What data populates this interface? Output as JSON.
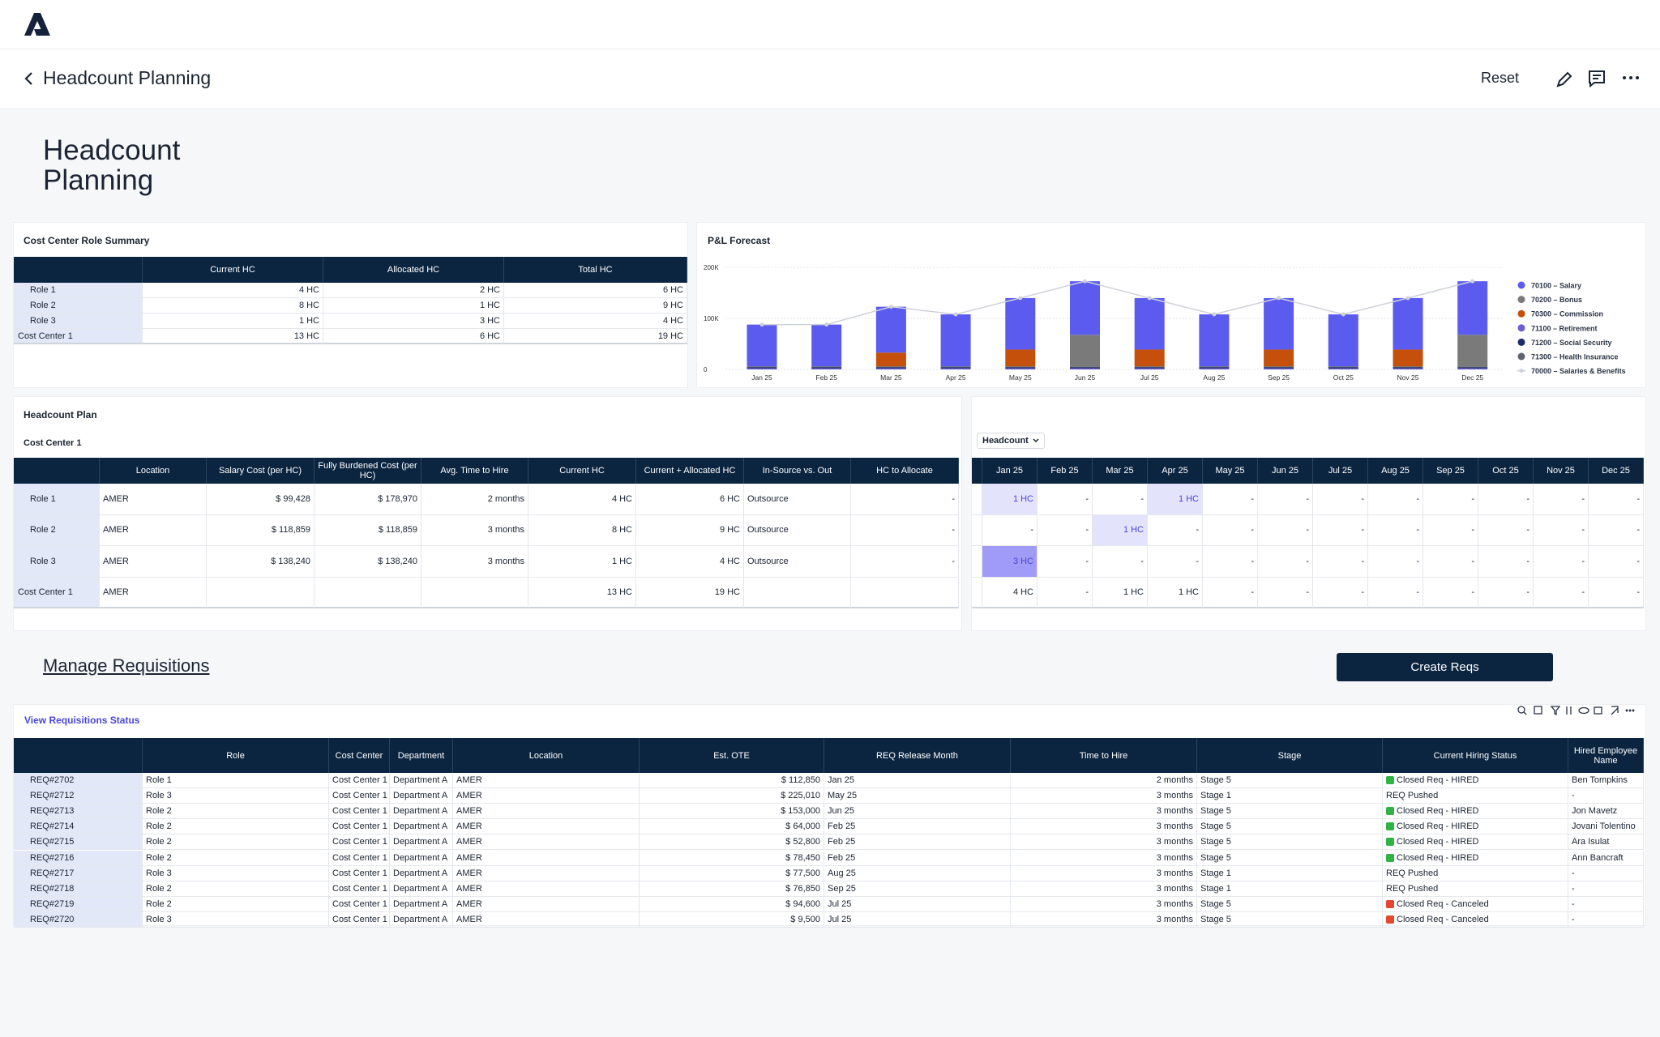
{
  "app": {
    "nav_title": "Headcount Planning",
    "reset": "Reset"
  },
  "page_title": "Headcount Planning",
  "role_summary": {
    "title": "Cost Center Role Summary",
    "columns": [
      "Current HC",
      "Allocated HC",
      "Total HC"
    ],
    "rows": [
      [
        "Role 1",
        "4 HC",
        "2 HC",
        "6 HC"
      ],
      [
        "Role 2",
        "8 HC",
        "1 HC",
        "9 HC"
      ],
      [
        "Role 3",
        "1 HC",
        "3 HC",
        "4 HC"
      ],
      [
        "Cost Center 1",
        "13 HC",
        "6 HC",
        "19 HC"
      ]
    ]
  },
  "chart_data": {
    "type": "bar",
    "title": "P&L Forecast",
    "stacked": true,
    "categories": [
      "Jan 25",
      "Feb 25",
      "Mar 25",
      "Apr 25",
      "May 25",
      "Jun 25",
      "Jul 25",
      "Aug 25",
      "Sep 25",
      "Oct 25",
      "Nov 25",
      "Dec 25"
    ],
    "series": [
      {
        "name": "70100 – Salary",
        "color": "#5b5bf0",
        "values": [
          82000,
          82000,
          90000,
          102000,
          101000,
          105000,
          101000,
          102000,
          101000,
          102000,
          101000,
          105000
        ]
      },
      {
        "name": "70200 – Bonus",
        "color": "#7a7a7a",
        "values": [
          0,
          0,
          0,
          0,
          0,
          62000,
          0,
          0,
          0,
          0,
          0,
          62000
        ]
      },
      {
        "name": "70300 – Commission",
        "color": "#c4500c",
        "values": [
          0,
          0,
          27000,
          0,
          33000,
          0,
          33000,
          0,
          33000,
          0,
          33000,
          0
        ]
      },
      {
        "name": "71100 – Retirement",
        "color": "#6b5fd6",
        "values": [
          2000,
          2000,
          2000,
          2000,
          2000,
          2000,
          2000,
          2000,
          2000,
          2000,
          2000,
          2000
        ]
      },
      {
        "name": "71200 – Social Security",
        "color": "#1d2b6e",
        "values": [
          2000,
          2000,
          2000,
          2000,
          2000,
          2000,
          2000,
          2000,
          2000,
          2000,
          2000,
          2000
        ]
      },
      {
        "name": "71300 – Health Insurance",
        "color": "#5f6470",
        "values": [
          2000,
          2000,
          2000,
          2000,
          2000,
          2000,
          2000,
          2000,
          2000,
          2000,
          2000,
          2000
        ]
      },
      {
        "name": "70000 – Salaries & Benefits",
        "type": "line",
        "color": "#cfd2da",
        "values": [
          88000,
          88000,
          123000,
          108000,
          140000,
          173000,
          140000,
          108000,
          140000,
          108000,
          140000,
          173000
        ]
      }
    ],
    "ylim": [
      0,
      205000
    ],
    "yticks": [
      0,
      {
        "value": 100000,
        "label": "100K"
      },
      {
        "value": 200000,
        "label": "200K"
      }
    ],
    "grid": true,
    "legend": "right"
  },
  "headcount_plan": {
    "title": "Headcount Plan",
    "subtitle": "Cost Center 1",
    "columns": [
      "Location",
      "Salary Cost (per HC)",
      "Fully Burdened Cost (per HC)",
      "Avg. Time to Hire",
      "Current HC",
      "Current + Allocated HC",
      "In-Source vs. Out",
      "HC to Allocate"
    ],
    "rows": [
      [
        "Role 1",
        "AMER",
        "$ 99,428",
        "$ 178,970",
        "2 months",
        "4 HC",
        "6 HC",
        "Outsource",
        "-"
      ],
      [
        "Role 2",
        "AMER",
        "$ 118,859",
        "$ 118,859",
        "3 months",
        "8 HC",
        "9 HC",
        "Outsource",
        "-"
      ],
      [
        "Role 3",
        "AMER",
        "$ 138,240",
        "$ 138,240",
        "3 months",
        "1 HC",
        "4 HC",
        "Outsource",
        "-"
      ],
      [
        "Cost Center 1",
        "AMER",
        null,
        null,
        null,
        "13 HC",
        "19 HC",
        null,
        null
      ]
    ]
  },
  "headcount_grid": {
    "selector": "Headcount",
    "columns": [
      "Jan 25",
      "Feb 25",
      "Mar 25",
      "Apr 25",
      "May 25",
      "Jun 25",
      "Jul 25",
      "Aug 25",
      "Sep 25",
      "Oct 25",
      "Nov 25",
      "Dec 25"
    ],
    "rows": [
      [
        "1 HC",
        "-",
        "-",
        "1 HC",
        "-",
        "-",
        "-",
        "-",
        "-",
        "-",
        "-",
        "-"
      ],
      [
        "-",
        "-",
        "1 HC",
        "-",
        "-",
        "-",
        "-",
        "-",
        "-",
        "-",
        "-",
        "-"
      ],
      [
        "3 HC",
        "-",
        "-",
        "-",
        "-",
        "-",
        "-",
        "-",
        "-",
        "-",
        "-",
        "-"
      ],
      [
        "4 HC",
        "-",
        "1 HC",
        "1 HC",
        "-",
        "-",
        "-",
        "-",
        "-",
        "-",
        "-",
        "-"
      ]
    ]
  },
  "requisitions": {
    "title": "Manage Requisitions",
    "button": "Create Reqs",
    "link": "View Requisitions Status",
    "columns": [
      "Role",
      "Cost Center",
      "Department",
      "Location",
      "Est. OTE",
      "REQ Release Month",
      "Time to Hire",
      "Stage",
      "Current Hiring Status",
      "Hired Employee Name"
    ],
    "rows": [
      [
        "REQ#2702",
        "Role 1",
        "Cost Center 1",
        "Department A",
        "AMER",
        "$ 112,850",
        "Jan 25",
        "2 months",
        "Stage 5",
        "Closed Req - HIRED",
        "Ben Tompkins"
      ],
      [
        "REQ#2712",
        "Role 3",
        "Cost Center 1",
        "Department A",
        "AMER",
        "$ 225,010",
        "May 25",
        "3 months",
        "Stage 1",
        "REQ Pushed",
        "-"
      ],
      [
        "REQ#2713",
        "Role 2",
        "Cost Center 1",
        "Department A",
        "AMER",
        "$ 153,000",
        "Jun 25",
        "3 months",
        "Stage 5",
        "Closed Req - HIRED",
        "Jon Mavetz"
      ],
      [
        "REQ#2714",
        "Role 2",
        "Cost Center 1",
        "Department A",
        "AMER",
        "$ 64,000",
        "Feb 25",
        "3 months",
        "Stage 5",
        "Closed Req - HIRED",
        "Jovani Tolentino"
      ],
      [
        "REQ#2715",
        "Role 2",
        "Cost Center 1",
        "Department A",
        "AMER",
        "$ 52,800",
        "Feb 25",
        "3 months",
        "Stage 5",
        "Closed Req - HIRED",
        "Ara Isulat"
      ],
      [
        "REQ#2716",
        "Role 2",
        "Cost Center 1",
        "Department A",
        "AMER",
        "$ 78,450",
        "Feb 25",
        "3 months",
        "Stage 5",
        "Closed Req - HIRED",
        "Ann Bancraft"
      ],
      [
        "REQ#2717",
        "Role 3",
        "Cost Center 1",
        "Department A",
        "AMER",
        "$ 77,500",
        "Aug 25",
        "3 months",
        "Stage 1",
        "REQ Pushed",
        "-"
      ],
      [
        "REQ#2718",
        "Role 2",
        "Cost Center 1",
        "Department A",
        "AMER",
        "$ 76,850",
        "Sep 25",
        "3 months",
        "Stage 1",
        "REQ Pushed",
        "-"
      ],
      [
        "REQ#2719",
        "Role 2",
        "Cost Center 1",
        "Department A",
        "AMER",
        "$ 94,600",
        "Jul 25",
        "3 months",
        "Stage 5",
        "Closed Req - Canceled",
        "-"
      ],
      [
        "REQ#2720",
        "Role 3",
        "Cost Center 1",
        "Department A",
        "AMER",
        "$ 9,500",
        "Jul 25",
        "3 months",
        "Stage 5",
        "Closed Req - Canceled",
        "-"
      ]
    ]
  }
}
